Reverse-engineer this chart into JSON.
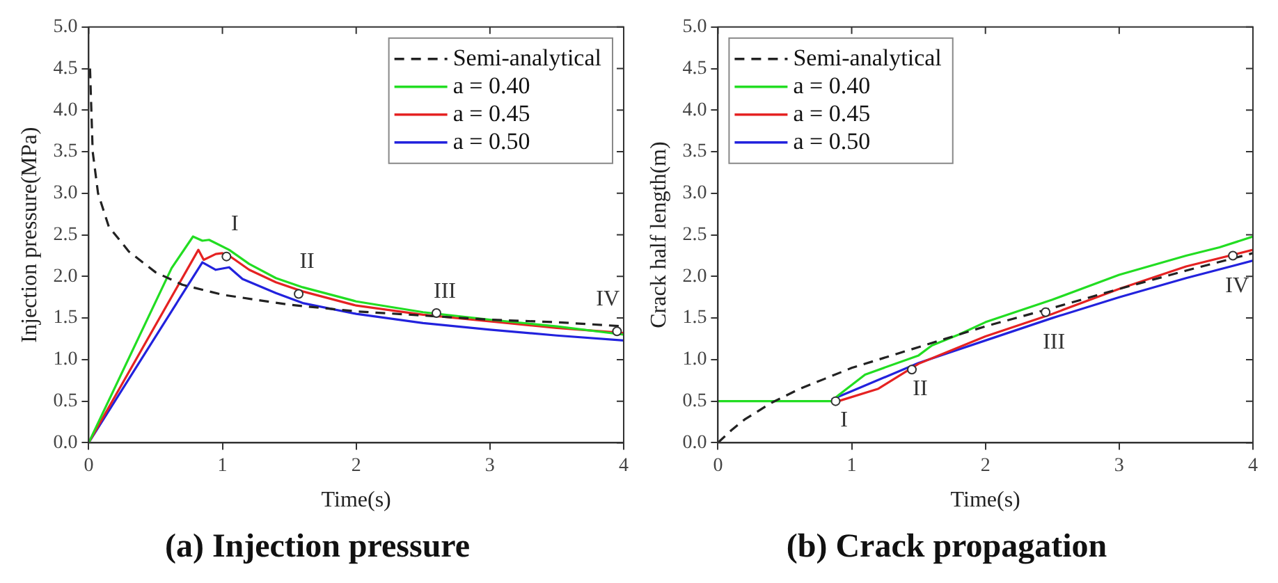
{
  "chart_data": [
    {
      "type": "line",
      "title": "(a) Injection pressure",
      "xlabel": "Time(s)",
      "ylabel": "Injection pressure(MPa)",
      "xlim": [
        0,
        4
      ],
      "xticks": [
        0,
        1,
        2,
        3,
        4
      ],
      "ylim": [
        0,
        5
      ],
      "yticks": [
        {
          "value": 0,
          "label": "0.0"
        },
        {
          "value": 0.5,
          "label": "0.5"
        },
        {
          "value": 1,
          "label": "1.0"
        },
        {
          "value": 1.5,
          "label": "1.5"
        },
        {
          "value": 2,
          "label": "2.0"
        },
        {
          "value": 2.5,
          "label": "2.5"
        },
        {
          "value": 3,
          "label": "3.0"
        },
        {
          "value": 3.5,
          "label": "3.5"
        },
        {
          "value": 4,
          "label": "4.0"
        },
        {
          "value": 4.5,
          "label": "4.5"
        },
        {
          "value": 5,
          "label": "5.0"
        }
      ],
      "grid": false,
      "legend": "top right",
      "marker": "none",
      "series": [
        {
          "name": "Semi-analytical",
          "color": "#222222",
          "line_style": "dashed",
          "x": [
            0.01,
            0.03,
            0.07,
            0.15,
            0.3,
            0.5,
            0.7,
            1.0,
            1.5,
            2.0,
            2.5,
            3.0,
            3.5,
            4.0
          ],
          "values": [
            4.5,
            3.5,
            3.0,
            2.6,
            2.3,
            2.05,
            1.9,
            1.78,
            1.66,
            1.58,
            1.53,
            1.48,
            1.45,
            1.4
          ]
        },
        {
          "name": "a = 0.40",
          "color": "#22dd22",
          "line_style": "solid",
          "x": [
            0,
            0.62,
            0.78,
            0.85,
            0.9,
            0.95,
            1.05,
            1.2,
            1.4,
            1.6,
            2.0,
            2.5,
            3.0,
            3.5,
            4.0
          ],
          "values": [
            0,
            2.1,
            2.48,
            2.43,
            2.44,
            2.4,
            2.32,
            2.15,
            1.98,
            1.87,
            1.7,
            1.57,
            1.48,
            1.4,
            1.3
          ]
        },
        {
          "name": "a = 0.45",
          "color": "#e52222",
          "line_style": "solid",
          "x": [
            0,
            0.82,
            0.86,
            0.95,
            1.0,
            1.05,
            1.2,
            1.4,
            1.6,
            2.0,
            2.5,
            3.0,
            3.5,
            4.0
          ],
          "values": [
            0,
            2.32,
            2.2,
            2.27,
            2.28,
            2.25,
            2.08,
            1.93,
            1.82,
            1.65,
            1.54,
            1.46,
            1.38,
            1.32
          ]
        },
        {
          "name": "a = 0.50",
          "color": "#2222dd",
          "line_style": "solid",
          "x": [
            0,
            0.85,
            0.95,
            1.05,
            1.15,
            1.4,
            1.6,
            2.0,
            2.5,
            3.0,
            3.5,
            4.0
          ],
          "values": [
            0,
            2.17,
            2.08,
            2.11,
            1.97,
            1.8,
            1.68,
            1.55,
            1.44,
            1.36,
            1.29,
            1.23
          ]
        }
      ],
      "annotations": [
        {
          "text": "I",
          "x": 1.03,
          "y": 2.24
        },
        {
          "text": "II",
          "x": 1.57,
          "y": 1.79
        },
        {
          "text": "III",
          "x": 2.6,
          "y": 1.56
        },
        {
          "text": "IV",
          "x": 3.95,
          "y": 1.34
        }
      ]
    },
    {
      "type": "line",
      "title": "(b) Crack propagation",
      "xlabel": "Time(s)",
      "ylabel": "Crack half length(m)",
      "xlim": [
        0,
        4
      ],
      "xticks": [
        0,
        1,
        2,
        3,
        4
      ],
      "ylim": [
        0,
        5
      ],
      "yticks": [
        {
          "value": 0,
          "label": "0.0"
        },
        {
          "value": 0.5,
          "label": "0.5"
        },
        {
          "value": 1,
          "label": "1.0"
        },
        {
          "value": 1.5,
          "label": "1.5"
        },
        {
          "value": 2,
          "label": "2.0"
        },
        {
          "value": 2.5,
          "label": "2.5"
        },
        {
          "value": 3,
          "label": "3.0"
        },
        {
          "value": 3.5,
          "label": "3.5"
        },
        {
          "value": 4,
          "label": "4.0"
        },
        {
          "value": 4.5,
          "label": "4.5"
        },
        {
          "value": 5,
          "label": "5.0"
        }
      ],
      "grid": false,
      "legend": "top left",
      "marker": "none",
      "series": [
        {
          "name": "Semi-analytical",
          "color": "#222222",
          "line_style": "dashed",
          "x": [
            0,
            0.1,
            0.2,
            0.4,
            0.6,
            0.8,
            1.0,
            1.5,
            2.0,
            2.5,
            3.0,
            3.5,
            4.0
          ],
          "values": [
            0,
            0.15,
            0.28,
            0.48,
            0.64,
            0.77,
            0.9,
            1.15,
            1.4,
            1.62,
            1.85,
            2.07,
            2.28
          ]
        },
        {
          "name": "a = 0.40",
          "color": "#22dd22",
          "line_style": "solid",
          "x": [
            0,
            0.85,
            0.9,
            1.1,
            1.5,
            1.6,
            1.8,
            2.0,
            2.5,
            3.0,
            3.5,
            3.75,
            4.0
          ],
          "values": [
            0.5,
            0.5,
            0.57,
            0.82,
            1.05,
            1.17,
            1.3,
            1.45,
            1.72,
            2.02,
            2.25,
            2.35,
            2.48
          ]
        },
        {
          "name": "a = 0.45",
          "color": "#e52222",
          "line_style": "solid",
          "x": [
            0.9,
            1.2,
            1.5,
            2.0,
            2.5,
            3.0,
            3.5,
            4.0
          ],
          "values": [
            0.5,
            0.65,
            0.95,
            1.28,
            1.55,
            1.85,
            2.12,
            2.32
          ]
        },
        {
          "name": "a = 0.50",
          "color": "#2222dd",
          "line_style": "solid",
          "x": [
            0.85,
            1.0,
            1.5,
            2.0,
            2.5,
            3.0,
            3.5,
            4.0
          ],
          "values": [
            0.52,
            0.62,
            0.96,
            1.23,
            1.5,
            1.75,
            1.98,
            2.19
          ]
        }
      ],
      "annotations": [
        {
          "text": "I",
          "x": 0.88,
          "y": 0.5
        },
        {
          "text": "II",
          "x": 1.45,
          "y": 0.88
        },
        {
          "text": "III",
          "x": 2.45,
          "y": 1.57
        },
        {
          "text": "IV",
          "x": 3.85,
          "y": 2.25
        }
      ]
    }
  ]
}
